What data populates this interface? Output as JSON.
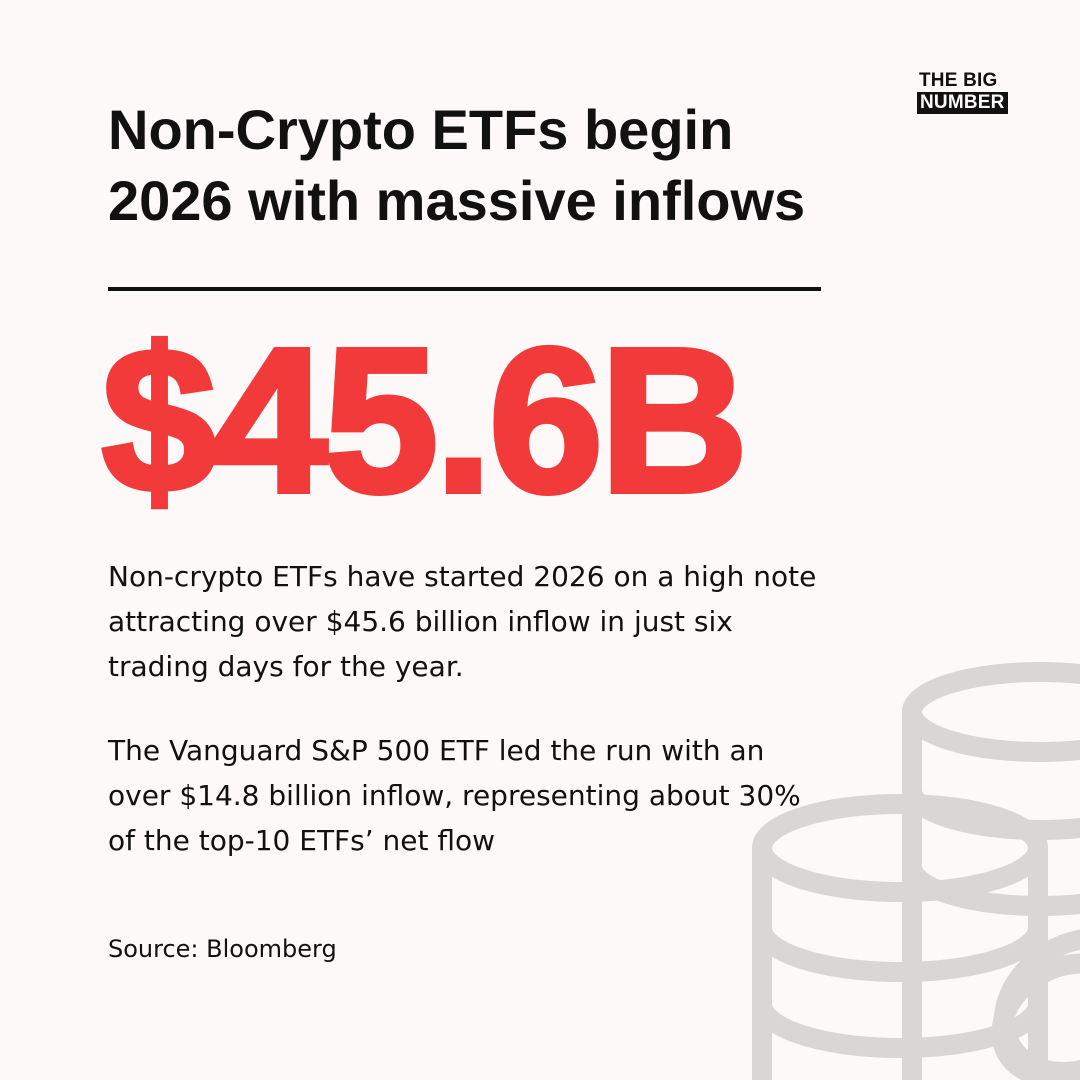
{
  "brand": {
    "line1": "THE BIG",
    "line2": "NUMBER"
  },
  "headline": {
    "line1": "Non-Crypto ETFs begin",
    "line2": "2026 with massive inflows"
  },
  "big_number": "$45.6B",
  "paragraph1": {
    "line1": "Non-crypto ETFs have started 2026 on a high note",
    "line2": "attracting over $45.6 billion inflow in just six",
    "line3": "trading days for the year."
  },
  "paragraph2": {
    "line1": "The Vanguard S&P 500 ETF led the run with an",
    "line2": "over $14.8 billion inflow, representing about 30%",
    "line3": "of the top-10 ETFs’ net flow"
  },
  "source": "Source: Bloomberg",
  "colors": {
    "background": "#fcf9f8",
    "text": "#111111",
    "accent": "#f23a3a",
    "coin_outline": "#d9d6d6"
  },
  "decoration_icon": "coin-stack-icon"
}
